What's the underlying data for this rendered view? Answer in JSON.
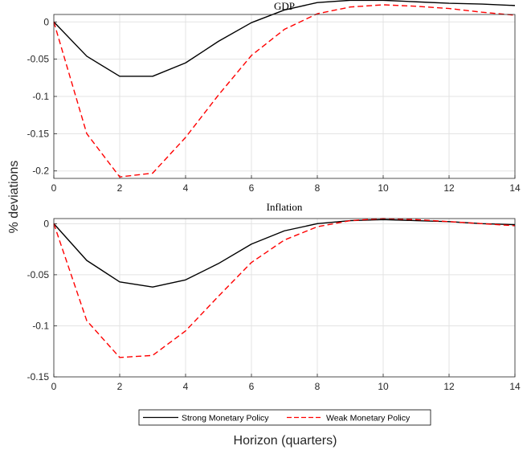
{
  "figure": {
    "ylabel": "% deviations",
    "xlabel": "Horizon (quarters)"
  },
  "legend": {
    "placement": "bottom-center",
    "entries": [
      {
        "label": "Strong Monetary Policy",
        "color": "#000000",
        "style": "solid"
      },
      {
        "label": "Weak Monetary Policy",
        "color": "#ff0000",
        "style": "dashed"
      }
    ]
  },
  "chart_data": [
    {
      "type": "line",
      "title": "GDP",
      "xlim": [
        0,
        14
      ],
      "ylim": [
        -0.21,
        0.01
      ],
      "grid": true,
      "x": [
        0,
        1,
        2,
        3,
        4,
        5,
        6,
        7,
        8,
        9,
        10,
        11,
        12,
        13,
        14
      ],
      "xticks": [
        "0",
        "2",
        "4",
        "6",
        "8",
        "10",
        "12",
        "14"
      ],
      "yticks": [
        "0",
        "-0.05",
        "-0.1",
        "-0.15",
        "-0.2"
      ],
      "series": [
        {
          "name": "Strong Monetary Policy",
          "color": "#000000",
          "values": [
            0,
            -0.046,
            -0.073,
            -0.073,
            -0.055,
            -0.026,
            -0.001,
            0.016,
            0.026,
            0.029,
            0.029,
            0.027,
            0.025,
            0.024,
            0.022
          ]
        },
        {
          "name": "Weak Monetary Policy",
          "color": "#ff0000",
          "values": [
            0,
            -0.15,
            -0.208,
            -0.203,
            -0.155,
            -0.098,
            -0.045,
            -0.01,
            0.011,
            0.02,
            0.023,
            0.021,
            0.018,
            0.013,
            0.009
          ]
        }
      ]
    },
    {
      "type": "line",
      "title": "Inflation",
      "xlim": [
        0,
        14
      ],
      "ylim": [
        -0.15,
        0.005
      ],
      "grid": true,
      "x": [
        0,
        1,
        2,
        3,
        4,
        5,
        6,
        7,
        8,
        9,
        10,
        11,
        12,
        13,
        14
      ],
      "xticks": [
        "0",
        "2",
        "4",
        "6",
        "8",
        "10",
        "12",
        "14"
      ],
      "yticks": [
        "0",
        "-0.05",
        "-0.1",
        "-0.15"
      ],
      "series": [
        {
          "name": "Strong Monetary Policy",
          "color": "#000000",
          "values": [
            0,
            -0.036,
            -0.057,
            -0.062,
            -0.055,
            -0.039,
            -0.02,
            -0.007,
            0.0,
            0.003,
            0.004,
            0.003,
            0.002,
            0.0,
            -0.001
          ]
        },
        {
          "name": "Weak Monetary Policy",
          "color": "#ff0000",
          "values": [
            0,
            -0.095,
            -0.131,
            -0.129,
            -0.105,
            -0.071,
            -0.038,
            -0.016,
            -0.003,
            0.003,
            0.005,
            0.004,
            0.002,
            0.0,
            -0.002
          ]
        }
      ]
    }
  ]
}
